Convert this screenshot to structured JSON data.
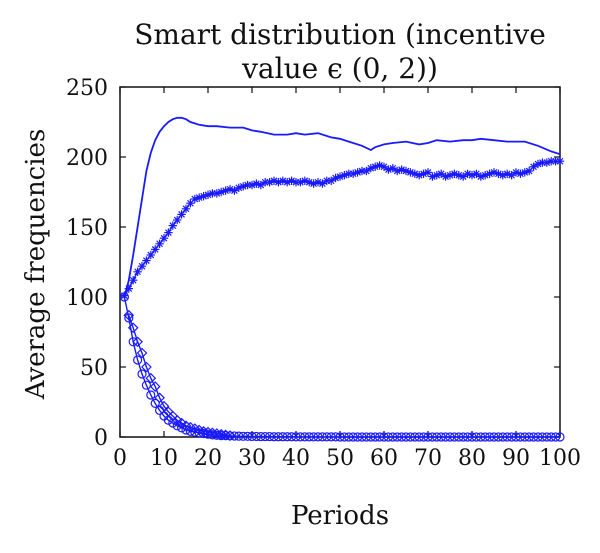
{
  "chart_data": {
    "type": "line",
    "title_lines": [
      "Smart distribution (incentive",
      "value ϵ (0, 2))"
    ],
    "xlabel": "Periods",
    "ylabel": "Average frequencies",
    "xlim": [
      0,
      100
    ],
    "ylim": [
      0,
      250
    ],
    "xticks": [
      0,
      10,
      20,
      30,
      40,
      50,
      60,
      70,
      80,
      90,
      100
    ],
    "yticks": [
      0,
      50,
      100,
      150,
      200,
      250
    ],
    "grid": false,
    "legend": "none",
    "colors": {
      "series": "#1a1aff",
      "axes": "#111111"
    },
    "series": [
      {
        "marker": "none",
        "x": [
          1,
          2,
          3,
          4,
          5,
          6,
          7,
          8,
          9,
          10,
          11,
          12,
          13,
          14,
          15,
          16,
          17,
          18,
          20,
          22,
          25,
          28,
          30,
          32,
          35,
          38,
          40,
          42,
          45,
          48,
          50,
          52,
          55,
          57,
          58,
          60,
          62,
          65,
          68,
          70,
          72,
          75,
          78,
          80,
          82,
          85,
          88,
          90,
          92,
          95,
          98,
          100
        ],
        "y": [
          100,
          112,
          130,
          150,
          170,
          190,
          203,
          212,
          218,
          222,
          225,
          227,
          228,
          228,
          227,
          225,
          224,
          223,
          222,
          222,
          221,
          221,
          219,
          218,
          216,
          216,
          217,
          216,
          217,
          214,
          213,
          211,
          208,
          205,
          207,
          209,
          210,
          211,
          209,
          210,
          212,
          211,
          212,
          212,
          213,
          212,
          211,
          211,
          211,
          208,
          204,
          202
        ]
      },
      {
        "marker": "asterisk",
        "x": [
          1,
          2,
          3,
          4,
          5,
          6,
          7,
          8,
          9,
          10,
          11,
          12,
          13,
          14,
          15,
          16,
          17,
          18,
          19,
          20,
          21,
          22,
          23,
          24,
          25,
          26,
          27,
          28,
          29,
          30,
          31,
          32,
          33,
          34,
          35,
          36,
          37,
          38,
          39,
          40,
          41,
          42,
          43,
          44,
          45,
          46,
          47,
          48,
          49,
          50,
          51,
          52,
          53,
          54,
          55,
          56,
          57,
          58,
          59,
          60,
          61,
          62,
          63,
          64,
          65,
          66,
          67,
          68,
          69,
          70,
          71,
          72,
          73,
          74,
          75,
          76,
          77,
          78,
          79,
          80,
          81,
          82,
          83,
          84,
          85,
          86,
          87,
          88,
          89,
          90,
          91,
          92,
          93,
          94,
          95,
          96,
          97,
          98,
          99,
          100
        ],
        "y": [
          101,
          106,
          112,
          118,
          122,
          126,
          130,
          134,
          138,
          142,
          146,
          151,
          155,
          159,
          163,
          167,
          170,
          171,
          172,
          173,
          174,
          174,
          175,
          176,
          177,
          176,
          178,
          179,
          180,
          180,
          181,
          180,
          182,
          182,
          183,
          182,
          183,
          182,
          183,
          182,
          182,
          183,
          182,
          181,
          182,
          181,
          183,
          183,
          185,
          186,
          187,
          188,
          188,
          189,
          190,
          190,
          192,
          193,
          194,
          193,
          191,
          192,
          190,
          191,
          190,
          189,
          188,
          187,
          188,
          189,
          186,
          187,
          188,
          186,
          187,
          188,
          187,
          186,
          188,
          187,
          188,
          186,
          187,
          188,
          189,
          188,
          187,
          188,
          187,
          189,
          188,
          189,
          190,
          193,
          195,
          196,
          196,
          197,
          197,
          197
        ]
      },
      {
        "marker": "circle",
        "x": [
          1,
          2,
          3,
          4,
          5,
          6,
          7,
          8,
          9,
          10,
          11,
          12,
          13,
          14,
          15,
          16,
          17,
          18,
          19,
          20,
          21,
          22,
          23,
          24,
          25,
          26,
          27,
          28,
          29,
          30,
          31,
          32,
          33,
          34,
          35,
          36,
          37,
          38,
          39,
          40,
          41,
          42,
          43,
          44,
          45,
          46,
          47,
          48,
          49,
          50,
          51,
          52,
          53,
          54,
          55,
          56,
          57,
          58,
          59,
          60,
          61,
          62,
          63,
          64,
          65,
          66,
          67,
          68,
          69,
          70,
          71,
          72,
          73,
          74,
          75,
          76,
          77,
          78,
          79,
          80,
          81,
          82,
          83,
          84,
          85,
          86,
          87,
          88,
          89,
          90,
          91,
          92,
          93,
          94,
          95,
          96,
          97,
          98,
          99,
          100
        ],
        "y": [
          100,
          85,
          68,
          55,
          45,
          37,
          30,
          24,
          19,
          15,
          12,
          10,
          8,
          6.5,
          5,
          4,
          3.5,
          3,
          2.5,
          2,
          1.5,
          1.2,
          1,
          1,
          0.8,
          0.7,
          0.6,
          0.5,
          0.5,
          0.4,
          0.4,
          0.3,
          0.3,
          0.3,
          0.2,
          0.2,
          0.2,
          0.2,
          0.2,
          0.1,
          0.1,
          0.1,
          0.1,
          0.1,
          0.1,
          0.1,
          0.1,
          0.1,
          0.1,
          0,
          0,
          0,
          0,
          0,
          0,
          0,
          0,
          0,
          0,
          0,
          0,
          0,
          0,
          0,
          0,
          0,
          0,
          0,
          0,
          0,
          0,
          0,
          0,
          0,
          0,
          0,
          0,
          0,
          0,
          0,
          0,
          0,
          0,
          0,
          0,
          0,
          0,
          0,
          0,
          0,
          0,
          0,
          0,
          0,
          0,
          0,
          0,
          0,
          0,
          0
        ]
      },
      {
        "marker": "diamond",
        "x": [
          2,
          3,
          4,
          5,
          6,
          7,
          8,
          9,
          10,
          11,
          12,
          13,
          14,
          15,
          16,
          17,
          18,
          19,
          20,
          21,
          22,
          23,
          24,
          25
        ],
        "y": [
          87,
          78,
          68,
          60,
          50,
          42,
          36,
          28,
          22,
          18,
          15,
          12,
          10,
          8,
          7,
          6,
          5,
          4,
          3.5,
          3,
          2.5,
          2,
          1.5,
          1
        ]
      }
    ]
  }
}
